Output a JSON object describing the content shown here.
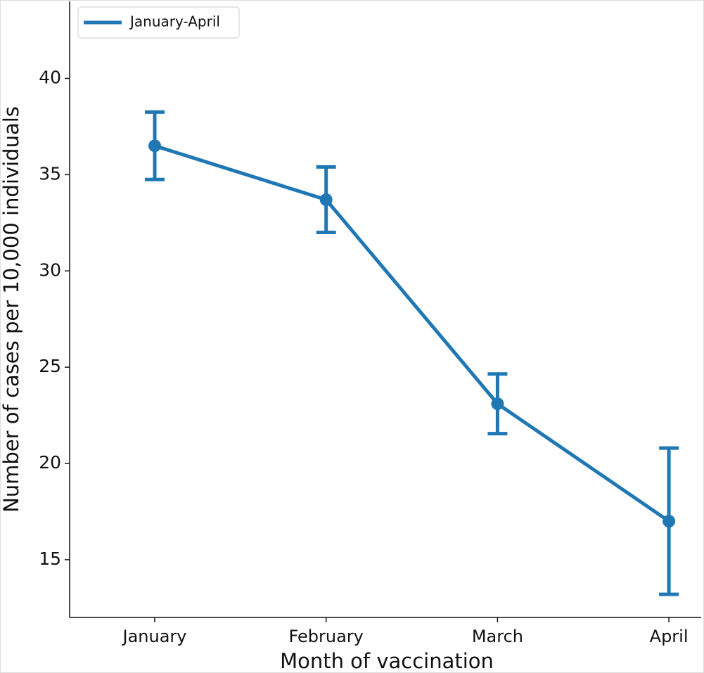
{
  "chart_data": {
    "type": "line",
    "xlabel": "Month of vaccination",
    "ylabel": "Number of cases per 10,000 individuals",
    "categories": [
      "January",
      "February",
      "March",
      "April"
    ],
    "series": [
      {
        "name": "January-April",
        "color": "#1f77b4",
        "values": [
          36.5,
          33.7,
          23.1,
          17.0
        ],
        "errors": [
          1.75,
          1.7,
          1.55,
          3.8
        ]
      }
    ],
    "ylim": [
      12,
      44
    ],
    "yticks": [
      15,
      20,
      25,
      30,
      35,
      40
    ],
    "grid": false,
    "legend": "upper left"
  }
}
